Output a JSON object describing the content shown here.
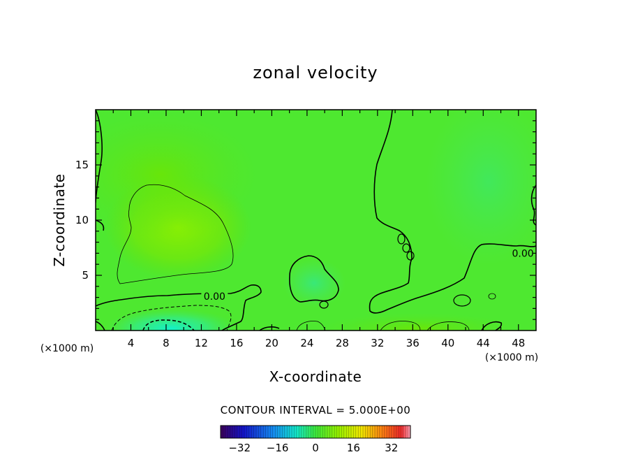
{
  "chart_data": {
    "type": "heatmap",
    "title": "zonal velocity",
    "xlabel": "X-coordinate",
    "ylabel": "Z-coordinate",
    "x_unit": "(×1000 m)",
    "x_unit_right": "(×1000 m)",
    "xlim": [
      0,
      50
    ],
    "ylim": [
      0,
      20
    ],
    "x_ticks": [
      4,
      8,
      12,
      16,
      20,
      24,
      28,
      32,
      36,
      40,
      44,
      48
    ],
    "y_ticks": [
      5,
      10,
      15
    ],
    "contour_labels": [
      {
        "text": "0.00",
        "x": 13.5,
        "z": 3.1
      },
      {
        "text": "0.00",
        "x": 48.5,
        "z": 7.0
      }
    ],
    "contour_interval_text": "CONTOUR INTERVAL =  5.000E+00",
    "colorbar": {
      "min": -40,
      "max": 40,
      "ticks": [
        -32,
        -16,
        0,
        16,
        32
      ],
      "tick_labels": [
        "−32",
        "−16",
        "0",
        "16",
        "32"
      ]
    },
    "field_regions": [
      {
        "name": "upper-left positive lobe",
        "x_center": 9.5,
        "z_center": 9.0,
        "value": 5
      },
      {
        "name": "near-surface negative core",
        "x_center": 9.0,
        "z_center": 0.5,
        "value": -10
      },
      {
        "name": "negative patch",
        "x_center": 25.0,
        "z_center": 4.0,
        "value": -3
      }
    ]
  }
}
